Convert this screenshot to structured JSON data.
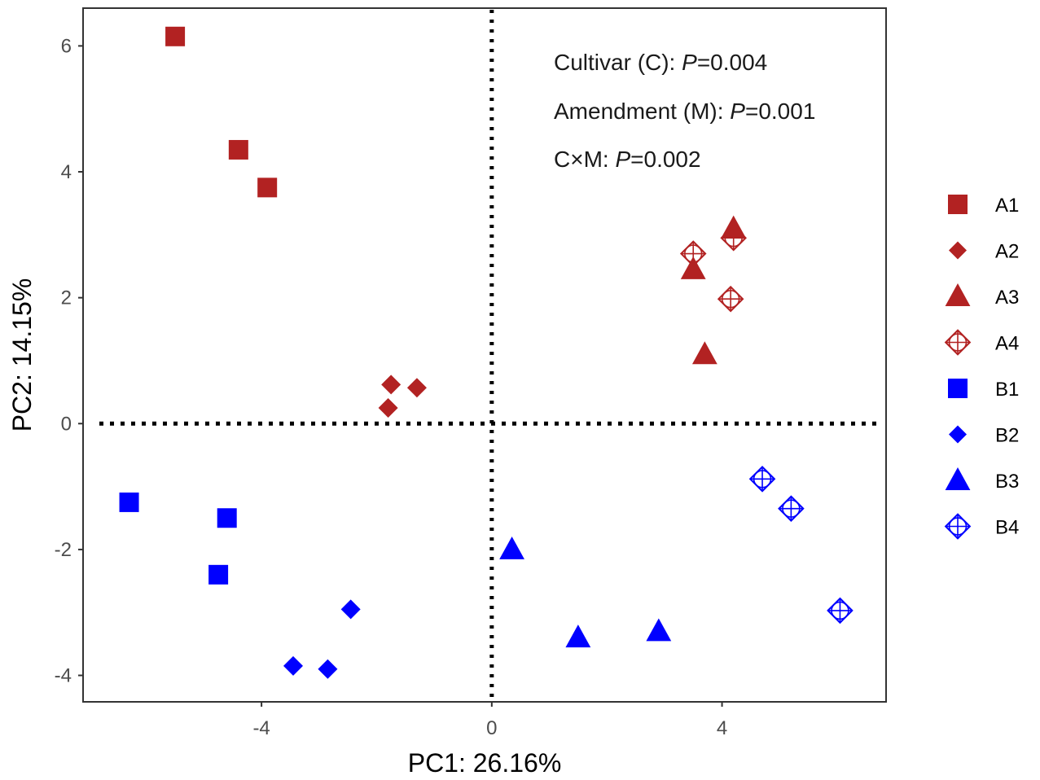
{
  "chart_data": {
    "type": "scatter",
    "xlabel": "PC1: 26.16%",
    "ylabel": "PC2: 14.15%",
    "xlim": [
      -7.1,
      6.85
    ],
    "ylim": [
      -4.42,
      6.6
    ],
    "x_ticks": [
      -4,
      0,
      4
    ],
    "y_ticks": [
      -4,
      -2,
      0,
      2,
      4,
      6
    ],
    "reference_lines": {
      "x": 0,
      "y": 0,
      "style": "dotted"
    },
    "grid": false,
    "legend_position": "right",
    "annotations": [
      {
        "text": "Cultivar (C): ",
        "italic": "P",
        "value": "=0.004"
      },
      {
        "text": "Amendment (M): ",
        "italic": "P",
        "value": "=0.001"
      },
      {
        "text": "C×M: ",
        "italic": "P",
        "value": "=0.002"
      }
    ],
    "series": [
      {
        "name": "A1",
        "color": "#b22222",
        "marker": "square",
        "points": [
          [
            -5.5,
            6.15
          ],
          [
            -4.4,
            4.35
          ],
          [
            -3.9,
            3.75
          ]
        ]
      },
      {
        "name": "A2",
        "color": "#b22222",
        "marker": "diamond",
        "points": [
          [
            -1.75,
            0.62
          ],
          [
            -1.3,
            0.57
          ],
          [
            -1.8,
            0.25
          ]
        ]
      },
      {
        "name": "A3",
        "color": "#b22222",
        "marker": "triangle",
        "points": [
          [
            4.2,
            3.1
          ],
          [
            3.5,
            2.45
          ],
          [
            3.7,
            1.1
          ]
        ]
      },
      {
        "name": "A4",
        "color": "#b22222",
        "marker": "crossed-diamond",
        "points": [
          [
            3.5,
            2.7
          ],
          [
            4.2,
            2.95
          ],
          [
            4.15,
            1.98
          ]
        ]
      },
      {
        "name": "B1",
        "color": "#0000ff",
        "marker": "square",
        "points": [
          [
            -6.3,
            -1.25
          ],
          [
            -4.6,
            -1.5
          ],
          [
            -4.75,
            -2.4
          ]
        ]
      },
      {
        "name": "B2",
        "color": "#0000ff",
        "marker": "diamond",
        "points": [
          [
            -2.45,
            -2.95
          ],
          [
            -3.45,
            -3.85
          ],
          [
            -2.85,
            -3.9
          ]
        ]
      },
      {
        "name": "B3",
        "color": "#0000ff",
        "marker": "triangle",
        "points": [
          [
            0.35,
            -2.0
          ],
          [
            1.5,
            -3.4
          ],
          [
            2.9,
            -3.3
          ]
        ]
      },
      {
        "name": "B4",
        "color": "#0000ff",
        "marker": "crossed-diamond",
        "points": [
          [
            4.7,
            -0.88
          ],
          [
            5.2,
            -1.35
          ],
          [
            6.05,
            -2.97
          ]
        ]
      }
    ]
  }
}
